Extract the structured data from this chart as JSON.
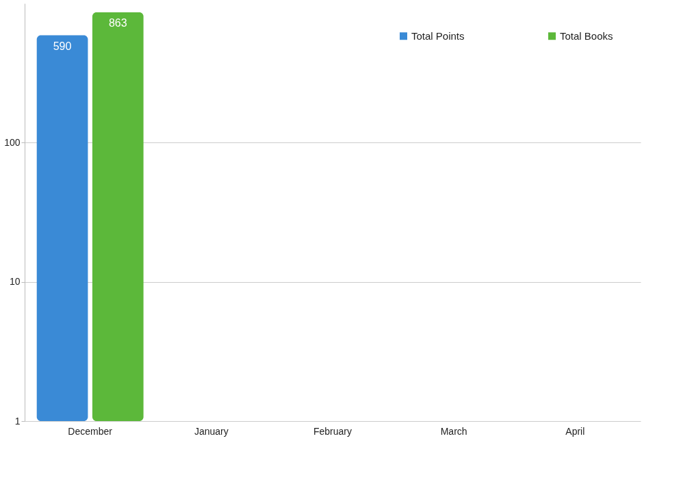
{
  "chart_data": {
    "type": "bar",
    "categories": [
      "December",
      "January",
      "February",
      "March",
      "April"
    ],
    "series": [
      {
        "name": "Total Points",
        "color": "#3a8ad6",
        "values": [
          590,
          null,
          null,
          null,
          null
        ]
      },
      {
        "name": "Total Books",
        "color": "#5cb83a",
        "values": [
          863,
          null,
          null,
          null,
          null
        ]
      }
    ],
    "log": "y",
    "ylim": [
      1,
      1000
    ],
    "yticks": [
      1,
      10,
      100
    ],
    "grid": "y",
    "legend": "top right",
    "data_labels": true
  }
}
